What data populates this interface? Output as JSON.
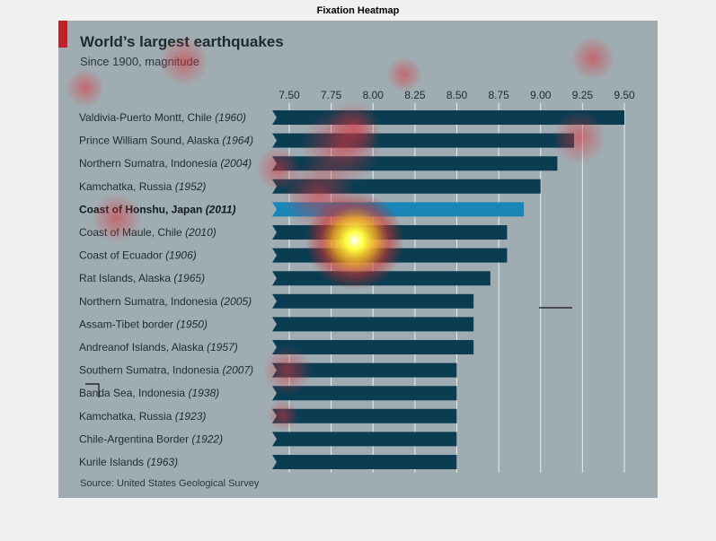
{
  "window": {
    "title": "Fixation Heatmap"
  },
  "colors": {
    "figure_bg": "#9fadb3",
    "bar": "#0b3d52",
    "bar_highlight": "#1a86b8",
    "accent": "#c0202a",
    "grid": "#e8eef0"
  },
  "chart_data": {
    "type": "bar",
    "orientation": "horizontal",
    "title": "World’s largest earthquakes",
    "subtitle": "Since 1900, magnitude",
    "source": "Source: United States Geological Survey",
    "xlim": [
      7.4,
      9.6
    ],
    "xticks": [
      "7.50",
      "7.75",
      "8.00",
      "8.25",
      "8.50",
      "8.75",
      "9.00",
      "9.25",
      "9.50"
    ],
    "x_axis_position": "top",
    "grid": true,
    "categories": [
      {
        "place": "Valdivia-Puerto Montt, Chile",
        "year": "(1960)",
        "value": 9.5
      },
      {
        "place": "Prince William Sound, Alaska",
        "year": "(1964)",
        "value": 9.2
      },
      {
        "place": "Northern Sumatra, Indonesia",
        "year": "(2004)",
        "value": 9.1
      },
      {
        "place": "Kamchatka, Russia",
        "year": "(1952)",
        "value": 9.0
      },
      {
        "place": "Coast of Honshu, Japan",
        "year": "(2011)",
        "value": 8.9,
        "highlight": true
      },
      {
        "place": "Coast of Maule, Chile",
        "year": "(2010)",
        "value": 8.8
      },
      {
        "place": "Coast of Ecuador",
        "year": "(1906)",
        "value": 8.8
      },
      {
        "place": "Rat Islands, Alaska",
        "year": "(1965)",
        "value": 8.7
      },
      {
        "place": "Northern Sumatra, Indonesia",
        "year": "(2005)",
        "value": 8.6
      },
      {
        "place": "Assam-Tibet border",
        "year": "(1950)",
        "value": 8.6
      },
      {
        "place": "Andreanof Islands, Alaska",
        "year": "(1957)",
        "value": 8.6
      },
      {
        "place": "Southern Sumatra, Indonesia",
        "year": "(2007)",
        "value": 8.5
      },
      {
        "place": "Banda Sea, Indonesia",
        "year": "(1938)",
        "value": 8.5
      },
      {
        "place": "Kamchatka, Russia",
        "year": "(1923)",
        "value": 8.5
      },
      {
        "place": "Chile-Argentina Border",
        "year": "(1922)",
        "value": 8.5
      },
      {
        "place": "Kurile Islands",
        "year": "(1963)",
        "value": 8.5
      }
    ]
  }
}
